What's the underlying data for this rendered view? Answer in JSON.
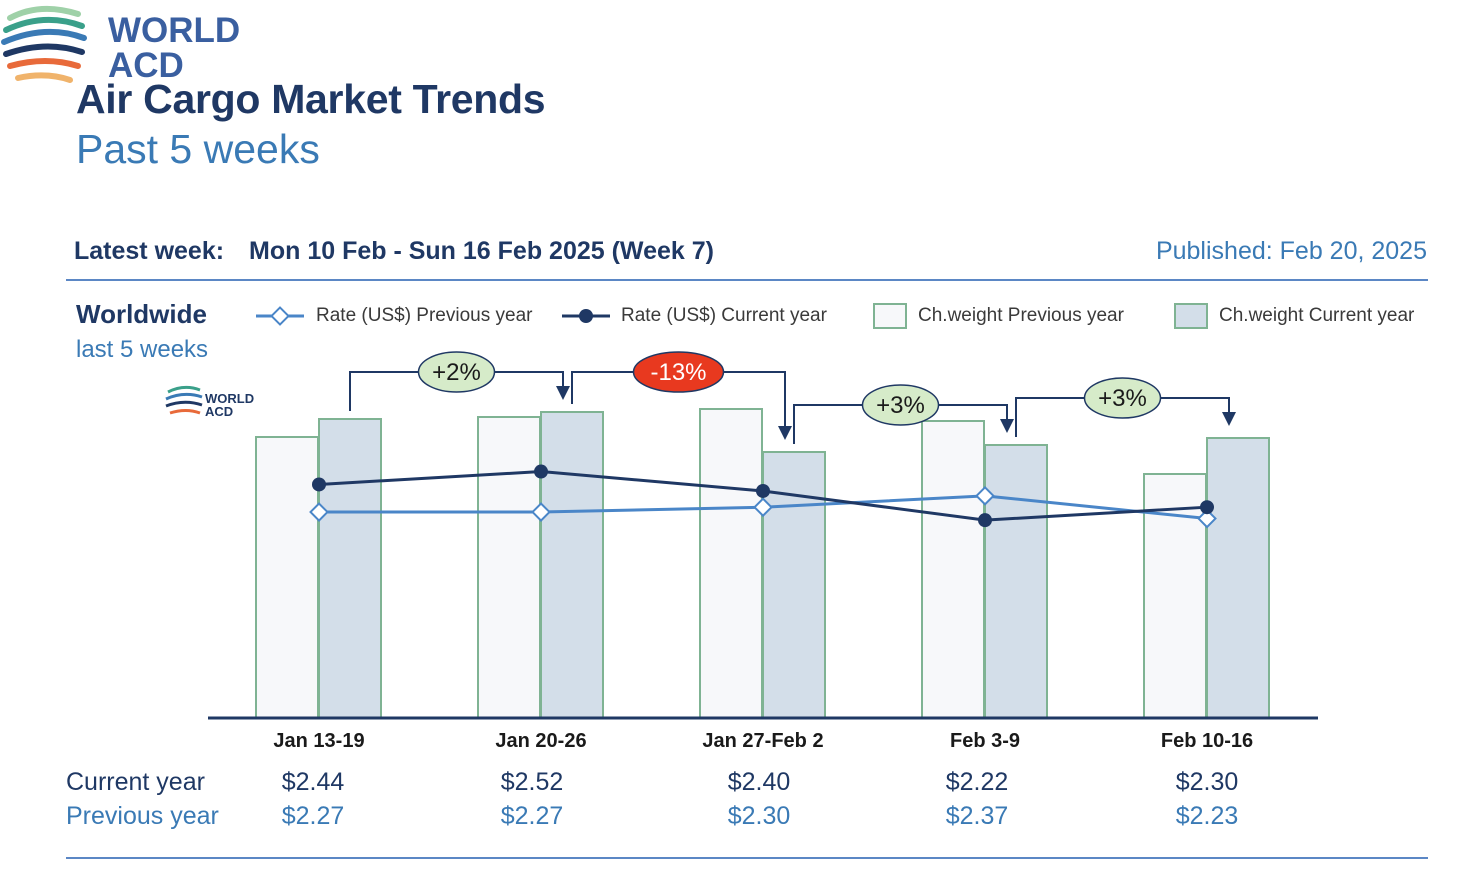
{
  "header": {
    "title": "Air Cargo Market Trends",
    "subtitle": "Past 5 weeks",
    "logo_text_line1": "WORLD",
    "logo_text_line2": "ACD"
  },
  "info": {
    "latest_label": "Latest week:",
    "latest_value": "Mon 10 Feb - Sun 16 Feb 2025 (Week 7)",
    "published": "Published: Feb 20, 2025"
  },
  "region": {
    "name": "Worldwide",
    "period": "last 5 weeks"
  },
  "legend": {
    "rate_prev": "Rate (US$) Previous year",
    "rate_cur": "Rate (US$) Current year",
    "weight_prev": "Ch.weight Previous year",
    "weight_cur": "Ch.weight Current year"
  },
  "table": {
    "current_label": "Current year",
    "previous_label": "Previous year",
    "current_values": [
      "$2.44",
      "$2.52",
      "$2.40",
      "$2.22",
      "$2.30"
    ],
    "previous_values": [
      "$2.27",
      "$2.27",
      "$2.30",
      "$2.37",
      "$2.23"
    ]
  },
  "colors": {
    "title": "#1f3864",
    "subtitle": "#3a7ab5",
    "rate_prev": "#4a86c8",
    "rate_cur": "#1f3864",
    "bar_prev_fill": "#f7f8fa",
    "bar_cur_fill": "#d3dee9",
    "bar_stroke": "#7fb393",
    "badge_positive": "#d6ebc9",
    "badge_negative": "#e8391f"
  },
  "chart_data": {
    "type": "bar",
    "categories": [
      "Jan 13-19",
      "Jan 20-26",
      "Jan 27-Feb 2",
      "Feb 3-9",
      "Feb 10-16"
    ],
    "series": [
      {
        "name": "Ch.weight Previous year",
        "kind": "bar",
        "values": [
          281,
          301,
          309,
          297,
          244
        ]
      },
      {
        "name": "Ch.weight Current year",
        "kind": "bar",
        "values": [
          299,
          306,
          266,
          273,
          280
        ]
      },
      {
        "name": "Rate (US$) Previous year",
        "kind": "line",
        "values": [
          2.27,
          2.27,
          2.3,
          2.37,
          2.23
        ]
      },
      {
        "name": "Rate (US$) Current year",
        "kind": "line",
        "values": [
          2.44,
          2.52,
          2.4,
          2.22,
          2.3
        ]
      }
    ],
    "bar_scale_note": "relative chargeable weight, no axis shown",
    "rate_ylim": [
      1.0,
      2.85
    ],
    "changes": [
      {
        "label": "+2%",
        "from": 0,
        "to": 1,
        "sign": "positive"
      },
      {
        "label": "-13%",
        "from": 1,
        "to": 2,
        "sign": "negative"
      },
      {
        "label": "+3%",
        "from": 2,
        "to": 3,
        "sign": "positive"
      },
      {
        "label": "+3%",
        "from": 3,
        "to": 4,
        "sign": "positive"
      }
    ]
  }
}
